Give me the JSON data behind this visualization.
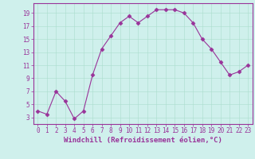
{
  "x": [
    0,
    1,
    2,
    3,
    4,
    5,
    6,
    7,
    8,
    9,
    10,
    11,
    12,
    13,
    14,
    15,
    16,
    17,
    18,
    19,
    20,
    21,
    22,
    23
  ],
  "y": [
    4.0,
    3.5,
    7.0,
    5.5,
    2.8,
    4.0,
    9.5,
    13.5,
    15.5,
    17.5,
    18.5,
    17.5,
    18.5,
    19.5,
    19.5,
    19.5,
    19.0,
    17.5,
    15.0,
    13.5,
    11.5,
    9.5,
    10.0,
    11.0
  ],
  "line_color": "#993399",
  "marker": "D",
  "markersize": 2.5,
  "linewidth": 0.8,
  "bg_color": "#cff0ec",
  "grid_color": "#aaddcc",
  "xlabel": "Windchill (Refroidissement éolien,°C)",
  "xlabel_fontsize": 6.5,
  "yticks": [
    3,
    5,
    7,
    9,
    11,
    13,
    15,
    17,
    19
  ],
  "xticks": [
    0,
    1,
    2,
    3,
    4,
    5,
    6,
    7,
    8,
    9,
    10,
    11,
    12,
    13,
    14,
    15,
    16,
    17,
    18,
    19,
    20,
    21,
    22,
    23
  ],
  "ylim": [
    2.0,
    20.5
  ],
  "xlim": [
    -0.5,
    23.5
  ],
  "tick_fontsize": 5.5,
  "axis_color": "#993399",
  "spine_color": "#993399"
}
